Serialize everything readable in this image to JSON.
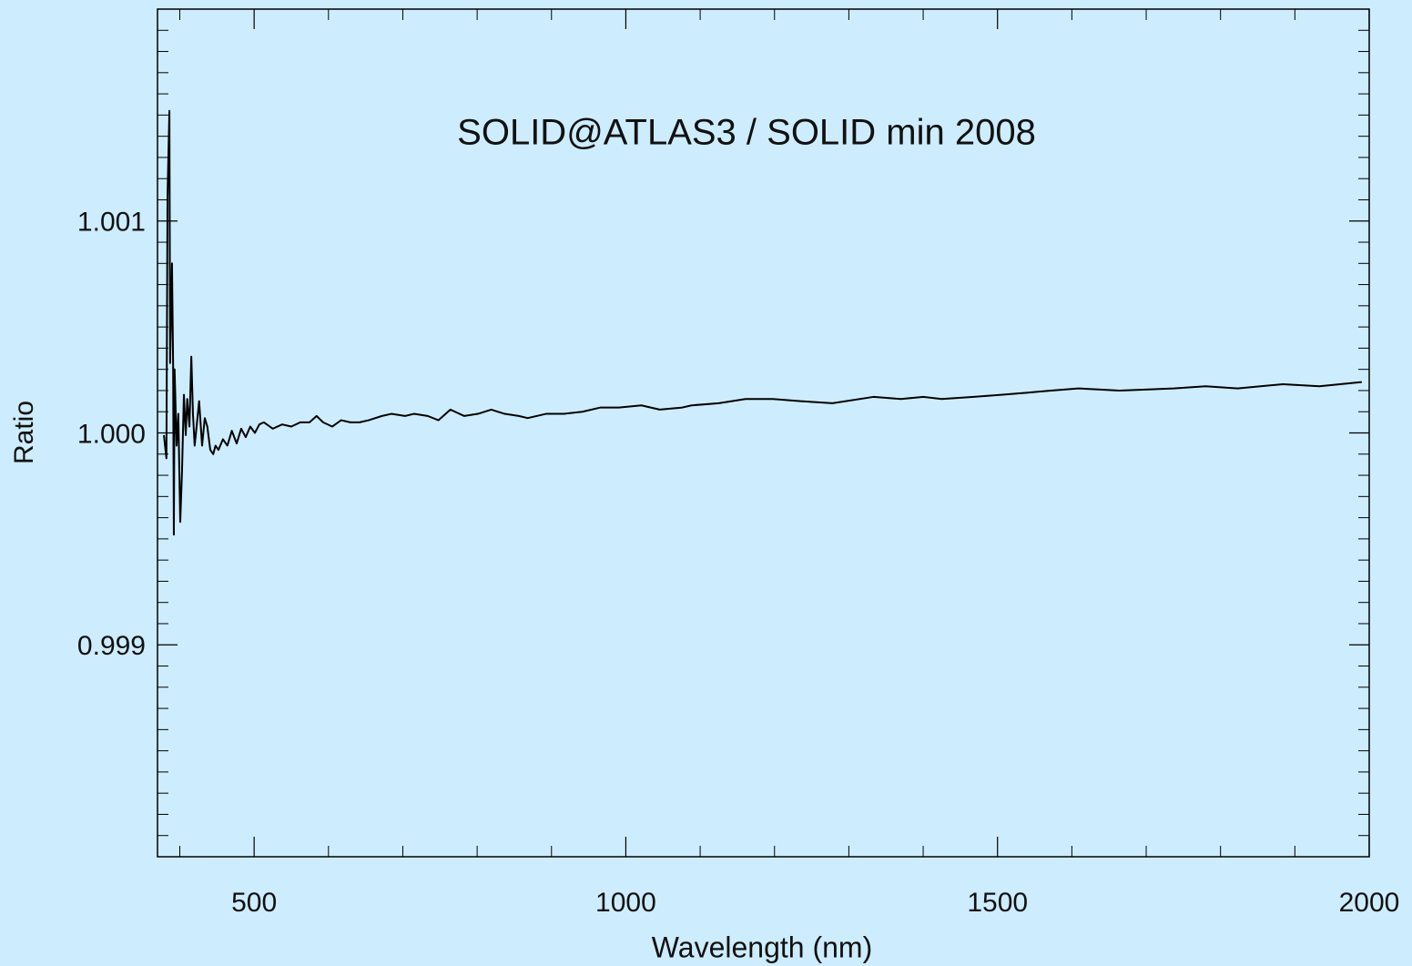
{
  "chart_data": {
    "type": "line",
    "title": "SOLID@ATLAS3 / SOLID min 2008",
    "x_label": "Wavelength (nm)",
    "y_label": "Ratio",
    "color": "#000000",
    "xlim": [
      370,
      2000
    ],
    "ylim": [
      0.998,
      1.002
    ],
    "xticks": [
      500,
      1000,
      1500,
      2000
    ],
    "yticks": [
      0.999,
      {
        "value": 1.0,
        "label": "1.000"
      },
      1.001
    ],
    "xminorticks": [
      400,
      600,
      700,
      800,
      900,
      1100,
      1200,
      1300,
      1400,
      1600,
      1700,
      1800,
      1900
    ],
    "yminorticks": [
      0.9981,
      0.9982,
      0.9983,
      0.9984,
      0.9985,
      0.9986,
      0.9987,
      0.9988,
      0.9989,
      0.9991,
      0.9992,
      0.9993,
      0.9994,
      0.9995,
      0.9996,
      0.9997,
      0.9998,
      0.9999,
      1.0001,
      1.0002,
      1.0003,
      1.0004,
      1.0005,
      1.0006,
      1.0007,
      1.0008,
      1.0009,
      1.0011,
      1.0012,
      1.0013,
      1.0014,
      1.0015,
      1.0016,
      1.0017,
      1.0018,
      1.0019
    ],
    "x": [
      378.6,
      382,
      383.5,
      386,
      387,
      389.5,
      391,
      392,
      393,
      395.7,
      398,
      400.6,
      403,
      405.5,
      408,
      410,
      413,
      415.5,
      417.7,
      420,
      422.6,
      426,
      430,
      433.6,
      437,
      441,
      445,
      448,
      452,
      458,
      464,
      470,
      476.5,
      482.6,
      488.7,
      494.8,
      501,
      507,
      513,
      525,
      537.7,
      550,
      562,
      574.5,
      584,
      592.8,
      605,
      617,
      629.6,
      641.7,
      654,
      672,
      684.6,
      703,
      715,
      733.5,
      748,
      764,
      782.5,
      801,
      819,
      837,
      856,
      868,
      892.6,
      917,
      941.6,
      966,
      990.6,
      1021,
      1045.6,
      1076,
      1088.5,
      1125,
      1161,
      1198,
      1235,
      1278,
      1333,
      1370,
      1400.6,
      1425,
      1468,
      1505,
      1541,
      1572,
      1609,
      1664,
      1737,
      1780,
      1823,
      1884,
      1933,
      1990
    ],
    "values": [
      0.99999,
      0.99988,
      1.00112,
      1.00152,
      1.00033,
      1.0008,
      1.00033,
      0.99952,
      1.0003,
      0.99994,
      1.00009,
      0.99958,
      0.99982,
      1.00018,
      0.99999,
      1.00016,
      1.00003,
      1.00036,
      1.00009,
      0.99994,
      1.00003,
      1.00015,
      0.99994,
      1.00007,
      1.00003,
      0.99992,
      0.9999,
      0.99994,
      0.99992,
      0.99997,
      0.99994,
      1.00001,
      0.99995,
      1.00002,
      0.99998,
      1.00003,
      1.0,
      1.00004,
      1.00005,
      1.00002,
      1.00004,
      1.00003,
      1.00005,
      1.00005,
      1.00008,
      1.00005,
      1.00003,
      1.00006,
      1.00005,
      1.00005,
      1.00006,
      1.00008,
      1.00009,
      1.00008,
      1.00009,
      1.00008,
      1.00006,
      1.00011,
      1.00008,
      1.00009,
      1.00011,
      1.00009,
      1.00008,
      1.00007,
      1.00009,
      1.00009,
      1.0001,
      1.00012,
      1.00012,
      1.00013,
      1.00011,
      1.00012,
      1.00013,
      1.00014,
      1.00016,
      1.00016,
      1.00015,
      1.00014,
      1.00017,
      1.00016,
      1.00017,
      1.00016,
      1.00017,
      1.00018,
      1.00019,
      1.0002,
      1.00021,
      1.0002,
      1.00021,
      1.00022,
      1.00021,
      1.00023,
      1.00022,
      1.00024
    ]
  }
}
